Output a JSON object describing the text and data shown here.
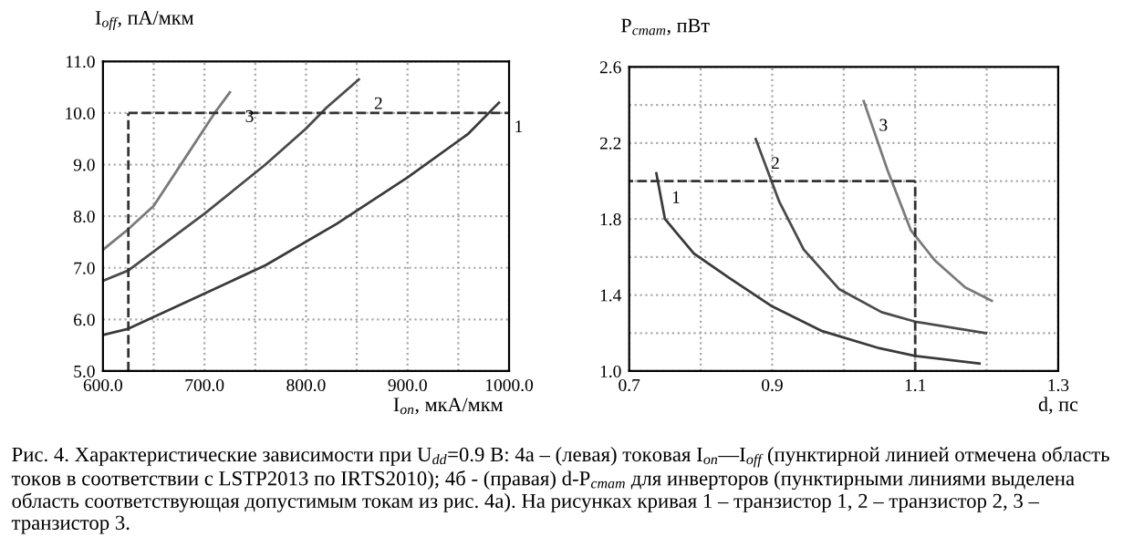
{
  "chart_data": [
    {
      "type": "line",
      "ylabel": "I$_{off}$, пА/мкм",
      "xlabel": "I$_{on}$, мкА/мкм",
      "xlim": [
        600,
        1000
      ],
      "ylim": [
        5,
        11
      ],
      "xticks": [
        {
          "value": 600,
          "label": "600.0"
        },
        {
          "value": 650,
          "label": null
        },
        {
          "value": 700,
          "label": "700.0"
        },
        {
          "value": 750,
          "label": null
        },
        {
          "value": 800,
          "label": "800.0"
        },
        {
          "value": 850,
          "label": null
        },
        {
          "value": 900,
          "label": "900.0"
        },
        {
          "value": 950,
          "label": null
        },
        {
          "value": 1000,
          "label": "1000.0"
        }
      ],
      "yticks": [
        {
          "value": 5,
          "label": "5.0"
        },
        {
          "value": 6,
          "label": "6.0"
        },
        {
          "value": 7,
          "label": "7.0"
        },
        {
          "value": 8,
          "label": "8.0"
        },
        {
          "value": 9,
          "label": "9.0"
        },
        {
          "value": 10,
          "label": "10.0"
        },
        {
          "value": 11,
          "label": "11.0"
        }
      ],
      "grid": true,
      "series": [
        {
          "name": "1",
          "color": "#3a3a3a",
          "x": [
            600,
            625,
            700,
            760,
            830,
            900,
            960,
            990
          ],
          "values": [
            5.7,
            5.82,
            6.5,
            7.05,
            7.85,
            8.75,
            9.6,
            10.2
          ]
        },
        {
          "name": "2",
          "color": "#4a4a4a",
          "x": [
            600,
            625,
            700,
            760,
            800,
            820,
            852
          ],
          "values": [
            6.75,
            6.95,
            8.05,
            9.0,
            9.7,
            10.1,
            10.65
          ]
        },
        {
          "name": "3",
          "color": "#7a7a7a",
          "x": [
            600,
            625,
            650,
            680,
            710,
            725
          ],
          "values": [
            7.35,
            7.75,
            8.2,
            9.1,
            10.0,
            10.4
          ]
        }
      ],
      "ref_lines": [
        {
          "axis": "x",
          "value": 625,
          "color": "#333333",
          "line_style": "dashed"
        },
        {
          "axis": "y",
          "value": 10,
          "color": "#333333",
          "line_style": "dashed"
        }
      ],
      "annotations": [
        "Рис. 4. Характеристические зависимости при U$_{dd}$=0.9 В: 4а – (левая) токовая I$_{on}$—I$_{off}$ (пунктирной линией отмечена область токов в соответствии с LSTP2013 по IRTS2010); 4б - (правая) d-P$_{стат}$ для инверторов (пунктирными линиями выделена область соответствующая допустимым токам из рис. 4а). На рисунках кривая 1 – транзистор 1, 2 – транзистор 2, 3 – транзистор 3."
      ]
    },
    {
      "type": "line",
      "ylabel": "P$_{стат}$, пВт",
      "xlabel": "d, пс",
      "xlim": [
        0.7,
        1.3
      ],
      "ylim": [
        1.0,
        2.6
      ],
      "xticks": [
        0.7,
        {
          "value": 0.8,
          "label": null
        },
        0.9,
        {
          "value": 1.0,
          "label": null
        },
        1.1,
        {
          "value": 1.2,
          "label": null
        },
        1.3
      ],
      "yticks": [
        {
          "value": 1.0,
          "label": "1.0"
        },
        {
          "value": 1.2,
          "label": null
        },
        1.4,
        {
          "value": 1.6,
          "label": null
        },
        1.8,
        {
          "value": 2.0,
          "label": null
        },
        2.2,
        {
          "value": 2.4,
          "label": null
        },
        2.6
      ],
      "grid": true,
      "series": [
        {
          "name": "1",
          "color": "#3a3a3a",
          "x": [
            0.738,
            0.75,
            0.79,
            0.84,
            0.9,
            0.97,
            1.05,
            1.1,
            1.19
          ],
          "values": [
            2.04,
            1.8,
            1.62,
            1.49,
            1.34,
            1.21,
            1.12,
            1.08,
            1.04
          ]
        },
        {
          "name": "2",
          "color": "#4a4a4a",
          "x": [
            0.877,
            0.91,
            0.944,
            0.994,
            1.053,
            1.1,
            1.199
          ],
          "values": [
            2.22,
            1.89,
            1.64,
            1.43,
            1.31,
            1.26,
            1.2
          ]
        },
        {
          "name": "3",
          "color": "#7a7a7a",
          "x": [
            1.028,
            1.061,
            1.094,
            1.128,
            1.17,
            1.207
          ],
          "values": [
            2.42,
            2.06,
            1.74,
            1.58,
            1.44,
            1.37
          ]
        }
      ],
      "ref_lines": [
        {
          "axis": "x",
          "value": 1.1,
          "color": "#333333",
          "line_style": "dashed"
        },
        {
          "axis": "y",
          "value": 2.0,
          "color": "#333333",
          "line_style": "dashed"
        }
      ]
    }
  ]
}
